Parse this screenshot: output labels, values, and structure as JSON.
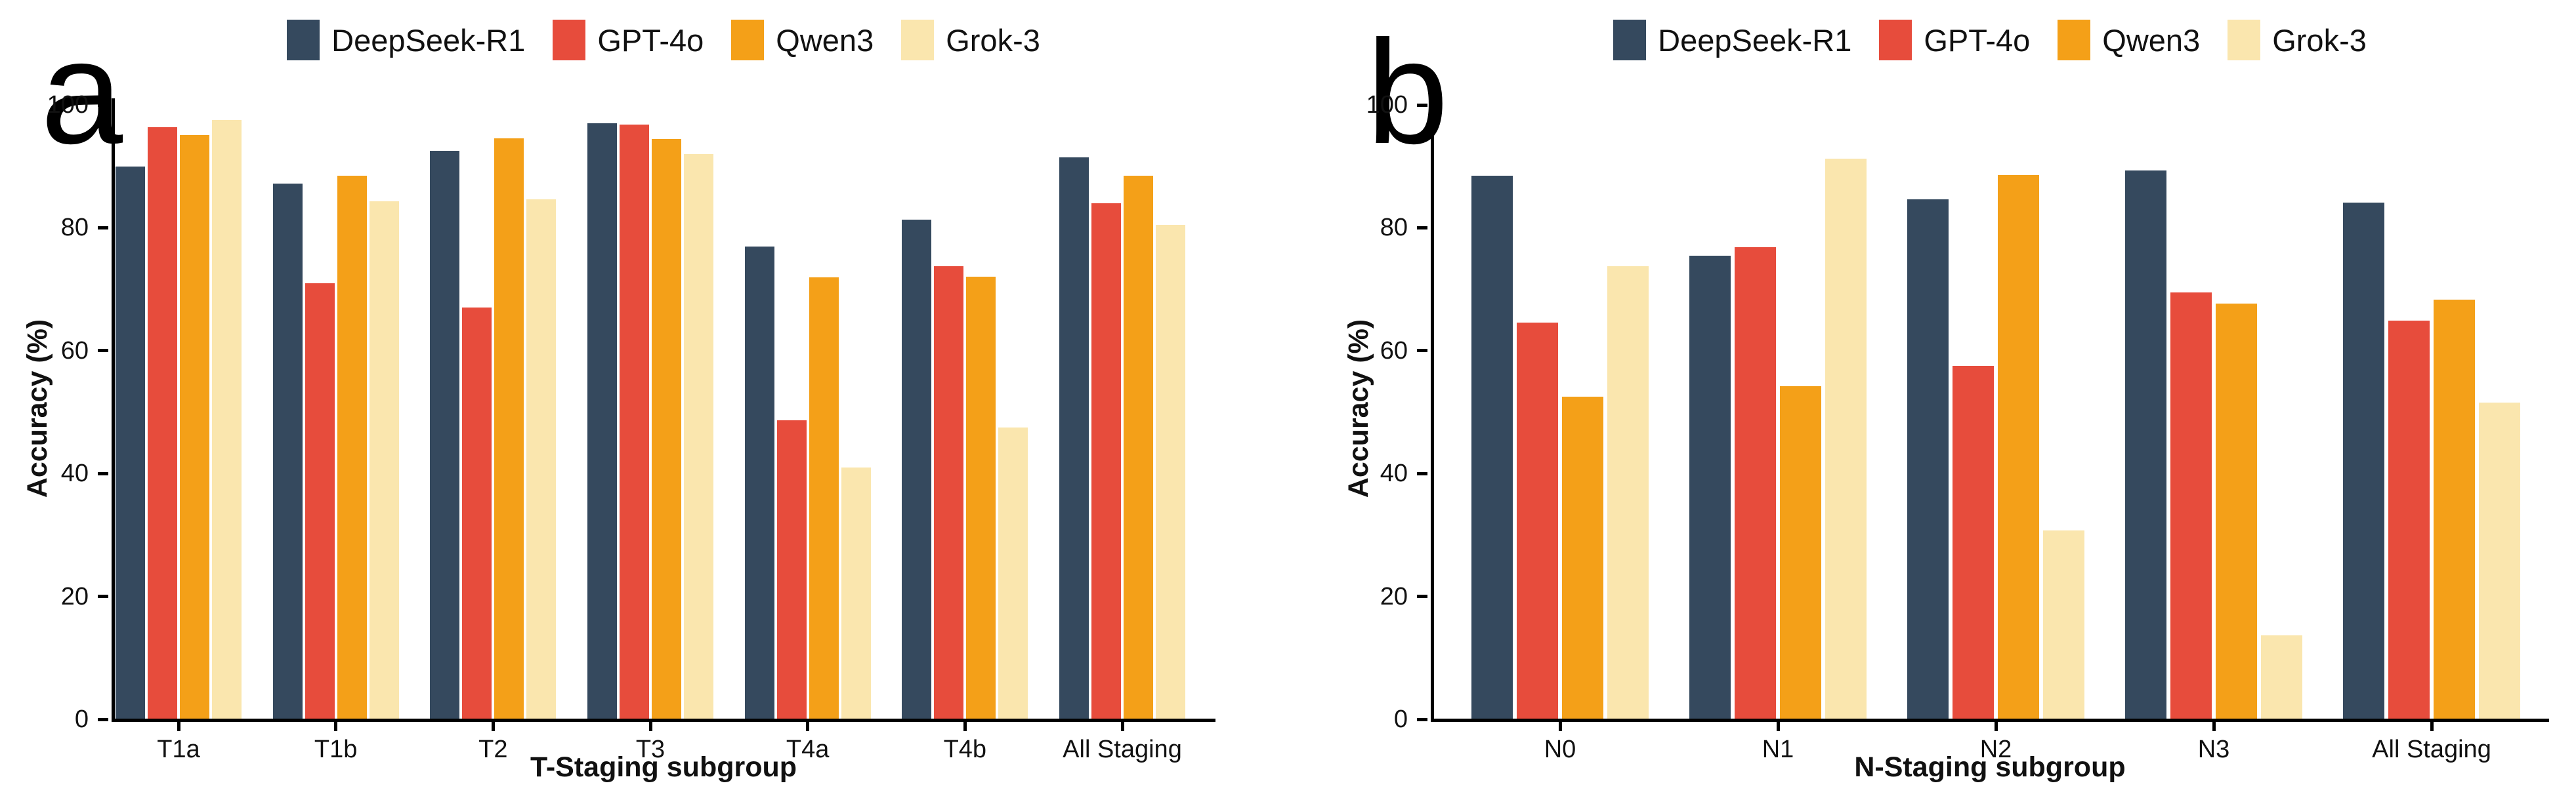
{
  "figure": {
    "background": "#FFFFFF"
  },
  "panels": [
    {
      "label": "a",
      "ylabel": "Accuracy (%)",
      "xlabel": "T-Staging subgroup"
    },
    {
      "label": "b",
      "ylabel": "Accuracy (%)",
      "xlabel": "N-Staging subgroup"
    }
  ],
  "legend": {
    "items": [
      {
        "label": "DeepSeek-R1",
        "color": "#35495E"
      },
      {
        "label": "GPT-4o",
        "color": "#E74C3C"
      },
      {
        "label": "Qwen3",
        "color": "#F4A018"
      },
      {
        "label": "Grok-3",
        "color": "#FAE6AE"
      }
    ]
  },
  "chart_data": [
    {
      "type": "bar",
      "panel": "a",
      "title": "",
      "xlabel": "T-Staging subgroup",
      "ylabel": "Accuracy (%)",
      "ylim": [
        0,
        100
      ],
      "yticks": [
        0,
        20,
        40,
        60,
        80,
        100
      ],
      "grid": false,
      "legend_position": "top",
      "categories": [
        "T1a",
        "T1b",
        "T2",
        "T3",
        "T4a",
        "T4b",
        "All Staging"
      ],
      "series": [
        {
          "name": "DeepSeek-R1",
          "color": "#35495E",
          "values": [
            90.0,
            87.2,
            92.5,
            97.0,
            77.0,
            81.3,
            91.5
          ]
        },
        {
          "name": "GPT-4o",
          "color": "#E74C3C",
          "values": [
            96.4,
            71.0,
            67.0,
            96.8,
            48.7,
            73.8,
            84.0
          ]
        },
        {
          "name": "Qwen3",
          "color": "#F4A018",
          "values": [
            95.1,
            88.5,
            94.6,
            94.4,
            71.9,
            72.0,
            88.5
          ]
        },
        {
          "name": "Grok-3",
          "color": "#FAE6AE",
          "values": [
            97.6,
            84.3,
            84.6,
            92.0,
            41.0,
            47.5,
            80.5
          ]
        }
      ]
    },
    {
      "type": "bar",
      "panel": "b",
      "title": "",
      "xlabel": "N-Staging subgroup",
      "ylabel": "Accuracy (%)",
      "ylim": [
        0,
        100
      ],
      "yticks": [
        0,
        20,
        40,
        60,
        80,
        100
      ],
      "grid": false,
      "legend_position": "top",
      "categories": [
        "N0",
        "N1",
        "N2",
        "N3",
        "All Staging"
      ],
      "series": [
        {
          "name": "DeepSeek-R1",
          "color": "#35495E",
          "values": [
            88.5,
            75.5,
            84.6,
            89.3,
            84.1
          ]
        },
        {
          "name": "GPT-4o",
          "color": "#E74C3C",
          "values": [
            64.6,
            76.8,
            57.5,
            69.5,
            64.9
          ]
        },
        {
          "name": "Qwen3",
          "color": "#F4A018",
          "values": [
            52.5,
            54.2,
            88.6,
            67.7,
            68.3
          ]
        },
        {
          "name": "Grok-3",
          "color": "#FAE6AE",
          "values": [
            73.7,
            91.2,
            30.7,
            13.7,
            51.5
          ]
        }
      ]
    }
  ]
}
